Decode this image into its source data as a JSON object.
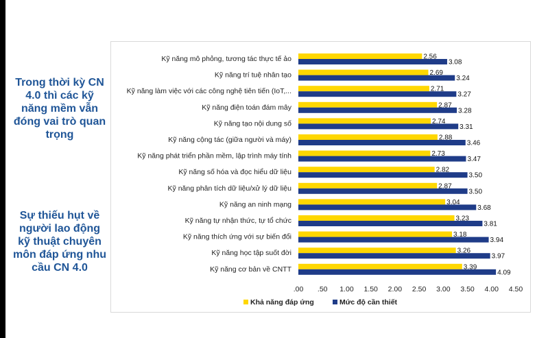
{
  "side_notes": {
    "top": "Trong thời kỳ CN 4.0 thì các kỹ năng mềm vẫn đóng vai trò quan trọng",
    "bottom": "Sự thiếu hụt về người lao động kỹ thuật chuyên môn đáp ứng nhu cầu CN 4.0"
  },
  "colors": {
    "series_yellow": "#ffd700",
    "series_navy": "#1f3c88",
    "side_text": "#1f5597"
  },
  "chart_data": {
    "type": "bar",
    "orientation": "horizontal",
    "categories": [
      "Kỹ năng mô phỏng, tương tác thực tế ảo",
      "Kỹ năng trí tuệ nhân tạo",
      "Kỹ năng làm việc với các công nghệ tiên tiến (IoT,...",
      "Kỹ năng điện toán đám mây",
      "Kỹ năng tạo nội dung số",
      "Kỹ năng cộng tác (giữa người và máy)",
      "Kỹ năng phát triển phần mềm, lập trình máy tính",
      "Kỹ năng số hóa và đọc hiểu dữ liệu",
      "Kỹ năng phân tích dữ liệu/xử lý dữ liệu",
      "Kỹ năng an ninh mạng",
      "Kỹ năng tự nhận thức, tự tổ chức",
      "Kỹ năng thích ứng với sự biến đổi",
      "Kỹ năng học tập suốt đời",
      "Kỹ năng cơ bản về CNTT"
    ],
    "series": [
      {
        "name": "Khả năng đáp ứng",
        "color": "#ffd700",
        "values": [
          2.56,
          2.69,
          2.71,
          2.87,
          2.74,
          2.88,
          2.73,
          2.82,
          2.87,
          3.04,
          3.23,
          3.18,
          3.26,
          3.39
        ],
        "labels": [
          "2.56",
          "2.69",
          "2.71",
          "2.87",
          "2.74",
          "2.88",
          "2.73",
          "2.82",
          "2.87",
          "3.04",
          "3.23",
          "3.18",
          "3.26",
          "3.39"
        ]
      },
      {
        "name": "Mức độ cần thiết",
        "color": "#1f3c88",
        "values": [
          3.08,
          3.24,
          3.27,
          3.28,
          3.31,
          3.46,
          3.47,
          3.5,
          3.5,
          3.68,
          3.81,
          3.94,
          3.97,
          4.09
        ],
        "labels": [
          "3.08",
          "3.24",
          "3.27",
          "3.28",
          "3.31",
          "3.46",
          "3.47",
          "3.50",
          "3.50",
          "3.68",
          "3.81",
          "3.94",
          "3.97",
          "4.09"
        ]
      }
    ],
    "xlim": [
      0,
      4.5
    ],
    "ticks": [
      ".00",
      ".50",
      "1.00",
      "1.50",
      "2.00",
      "2.50",
      "3.00",
      "3.50",
      "4.00",
      "4.50"
    ],
    "legend_position": "bottom",
    "grid": false
  }
}
